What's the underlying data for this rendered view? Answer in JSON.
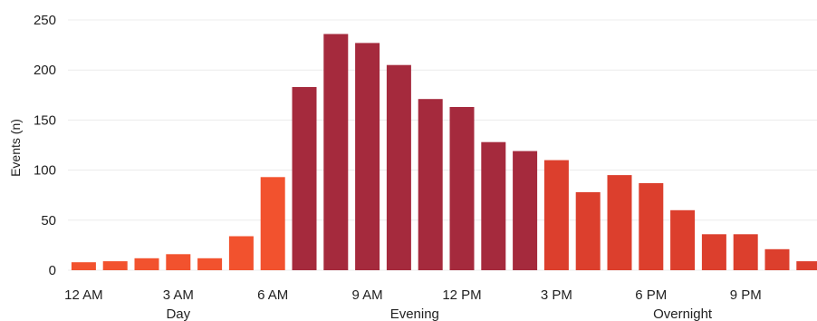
{
  "colors": {
    "day": "#f2522e",
    "evening": "#a52a3d",
    "overnight": "#dc3f2d",
    "grid": "#ececec",
    "text": "#222222"
  },
  "chart_data": {
    "type": "bar",
    "title": "",
    "ylabel": "Events (n)",
    "xlabel": "",
    "ylim": [
      0,
      250
    ],
    "yticks": [
      0,
      50,
      100,
      150,
      200,
      250
    ],
    "xtick_labels": [
      "12 AM",
      "3 AM",
      "6 AM",
      "9 AM",
      "12 PM",
      "3 PM",
      "6 PM",
      "9 PM"
    ],
    "grid": "horizontal",
    "legend": "none",
    "periods": [
      "Day",
      "Evening",
      "Overnight"
    ],
    "bars": [
      {
        "hour": 0,
        "value": 8,
        "period": "Day"
      },
      {
        "hour": 1,
        "value": 9,
        "period": "Day"
      },
      {
        "hour": 2,
        "value": 12,
        "period": "Day"
      },
      {
        "hour": 3,
        "value": 16,
        "period": "Day"
      },
      {
        "hour": 4,
        "value": 12,
        "period": "Day"
      },
      {
        "hour": 5,
        "value": 34,
        "period": "Day"
      },
      {
        "hour": 6,
        "value": 93,
        "period": "Day"
      },
      {
        "hour": 7,
        "value": 183,
        "period": "Evening"
      },
      {
        "hour": 8,
        "value": 236,
        "period": "Evening"
      },
      {
        "hour": 9,
        "value": 227,
        "period": "Evening"
      },
      {
        "hour": 10,
        "value": 205,
        "period": "Evening"
      },
      {
        "hour": 11,
        "value": 171,
        "period": "Evening"
      },
      {
        "hour": 12,
        "value": 163,
        "period": "Evening"
      },
      {
        "hour": 13,
        "value": 128,
        "period": "Evening"
      },
      {
        "hour": 14,
        "value": 119,
        "period": "Evening"
      },
      {
        "hour": 15,
        "value": 110,
        "period": "Overnight"
      },
      {
        "hour": 16,
        "value": 78,
        "period": "Overnight"
      },
      {
        "hour": 17,
        "value": 95,
        "period": "Overnight"
      },
      {
        "hour": 18,
        "value": 87,
        "period": "Overnight"
      },
      {
        "hour": 19,
        "value": 60,
        "period": "Overnight"
      },
      {
        "hour": 20,
        "value": 36,
        "period": "Overnight"
      },
      {
        "hour": 21,
        "value": 36,
        "period": "Overnight"
      },
      {
        "hour": 22,
        "value": 21,
        "period": "Overnight"
      },
      {
        "hour": 23,
        "value": 9,
        "period": "Overnight"
      }
    ]
  }
}
